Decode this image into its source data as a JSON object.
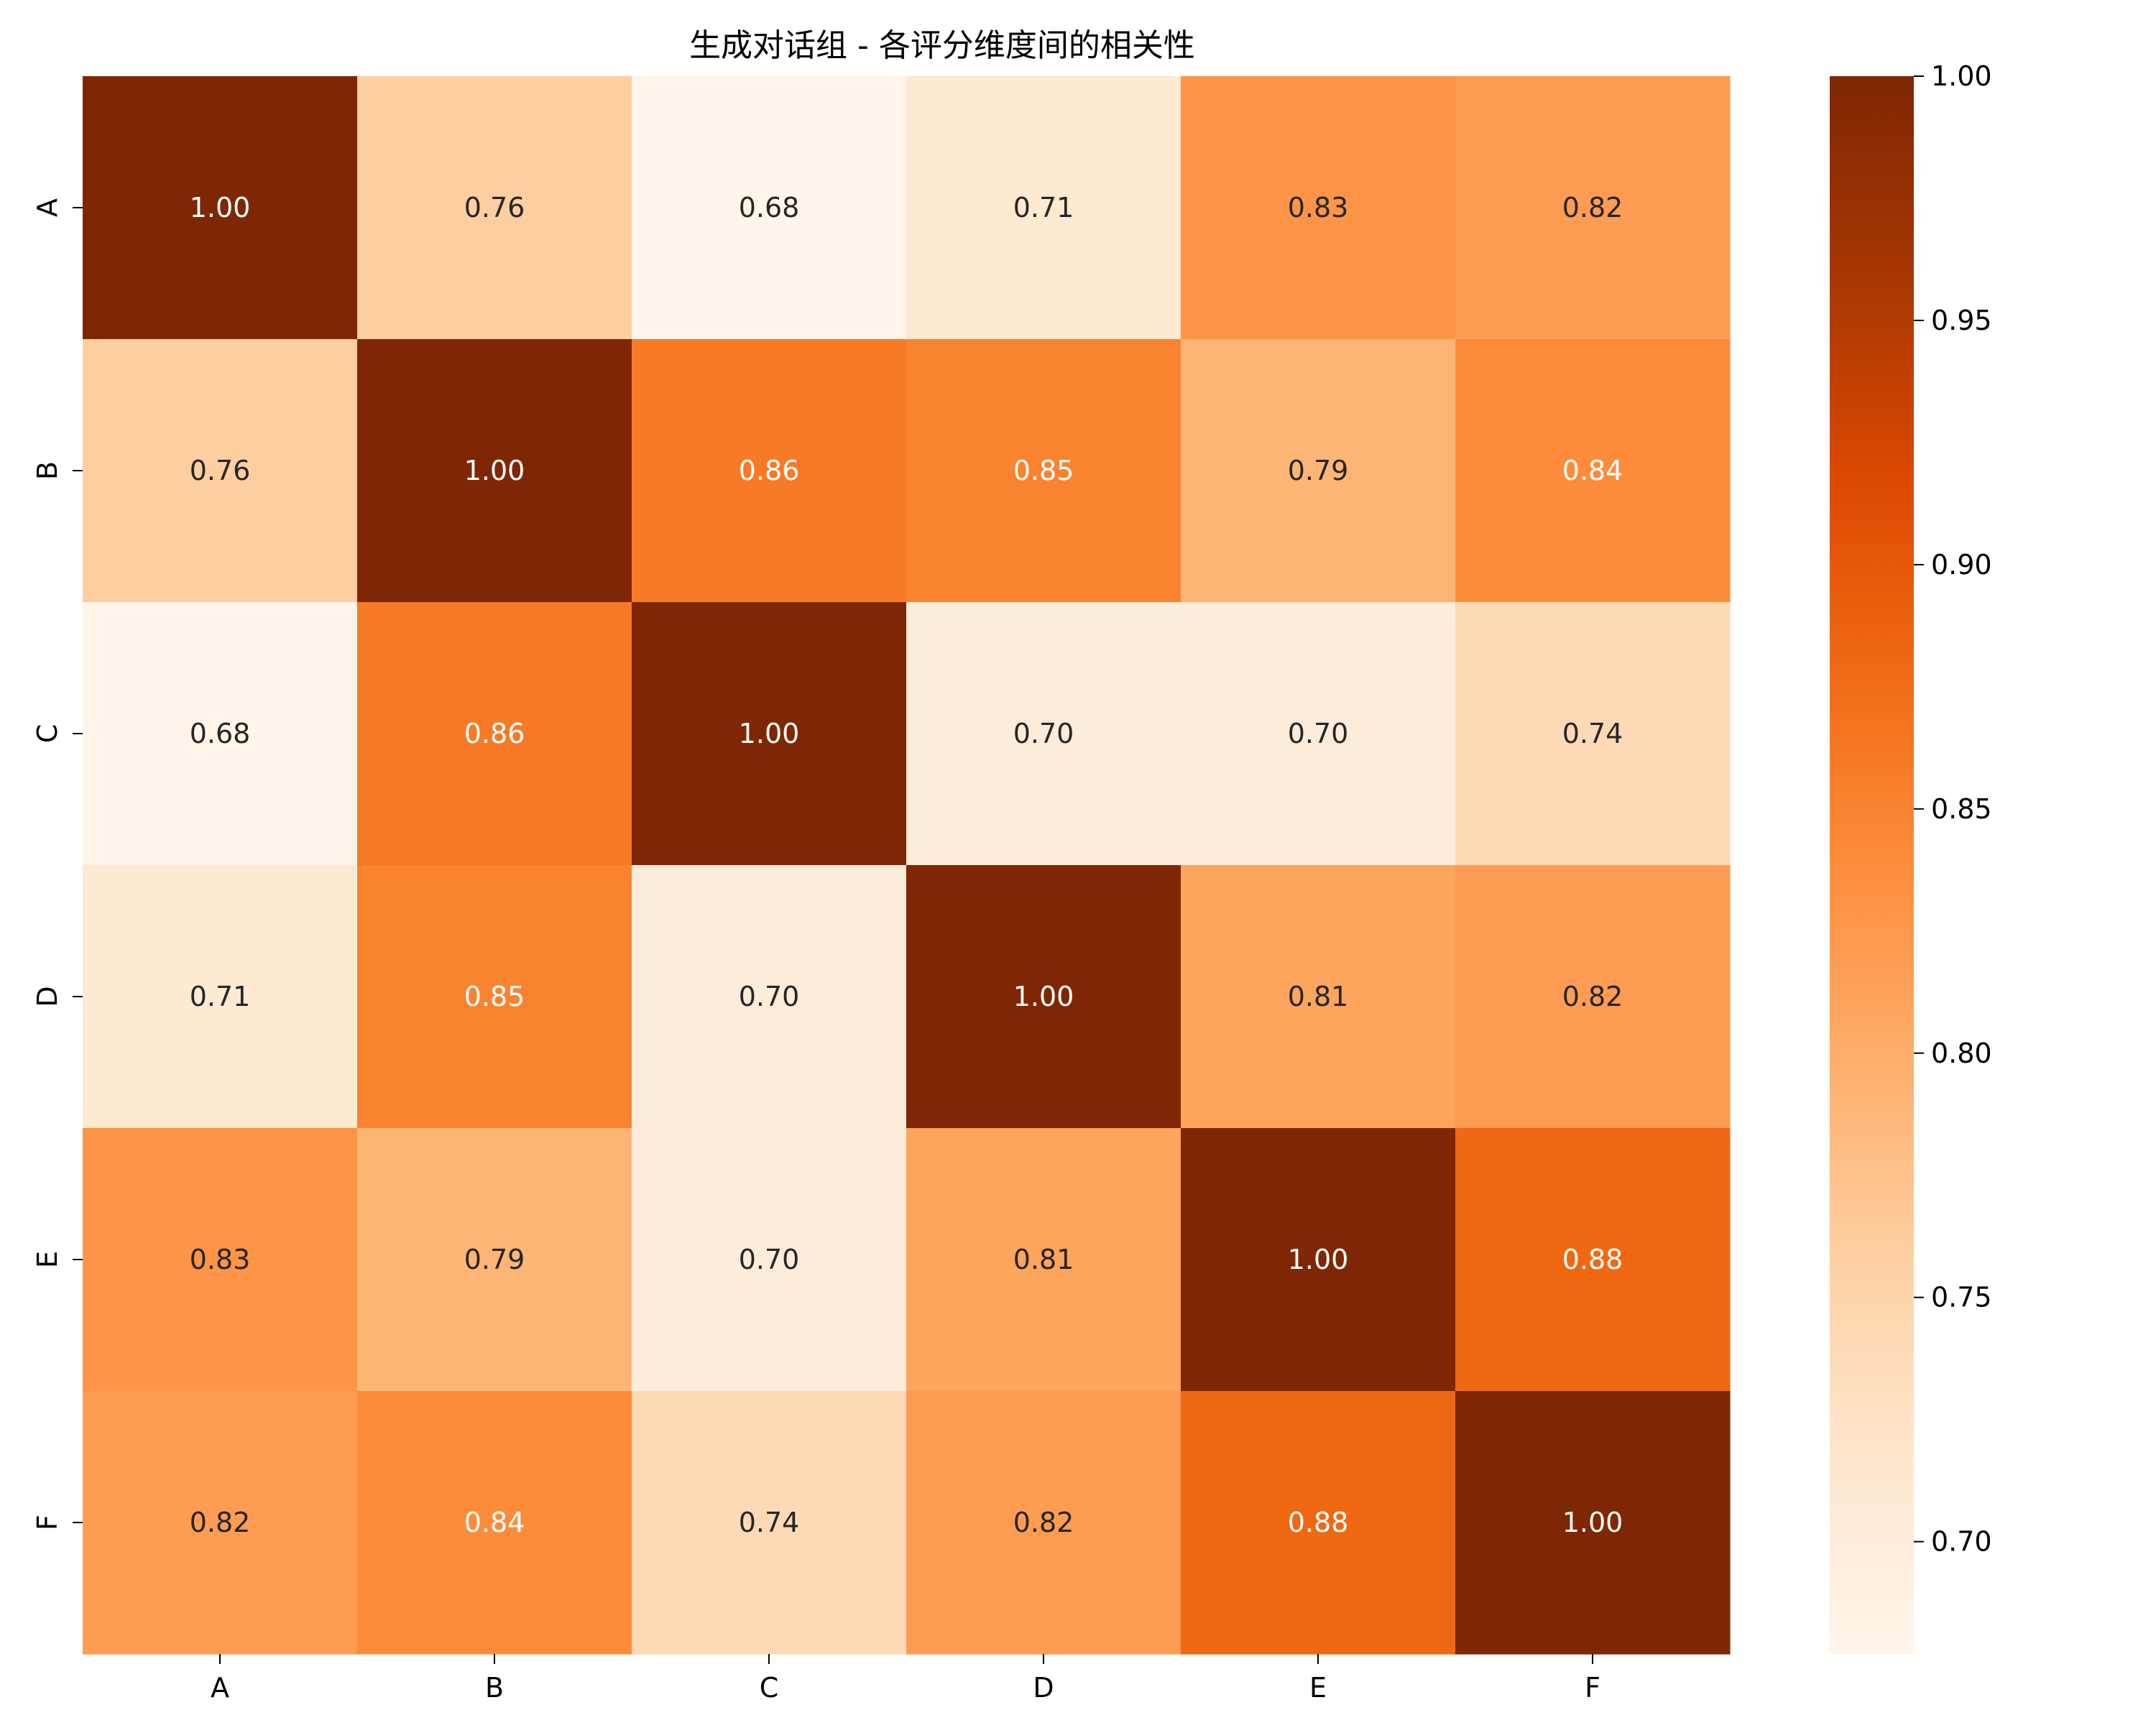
{
  "chart_data": {
    "type": "heatmap",
    "title": "生成对话组 - 各评分维度间的相关性",
    "xlabel": "",
    "ylabel": "",
    "x_categories": [
      "A",
      "B",
      "C",
      "D",
      "E",
      "F"
    ],
    "y_categories": [
      "A",
      "B",
      "C",
      "D",
      "E",
      "F"
    ],
    "values": [
      [
        1.0,
        0.76,
        0.68,
        0.71,
        0.83,
        0.82
      ],
      [
        0.76,
        1.0,
        0.86,
        0.85,
        0.79,
        0.84
      ],
      [
        0.68,
        0.86,
        1.0,
        0.7,
        0.7,
        0.74
      ],
      [
        0.71,
        0.85,
        0.7,
        1.0,
        0.81,
        0.82
      ],
      [
        0.83,
        0.79,
        0.7,
        0.81,
        1.0,
        0.88
      ],
      [
        0.82,
        0.84,
        0.74,
        0.82,
        0.88,
        1.0
      ]
    ],
    "value_format": "2 decimals",
    "colormap": "Oranges",
    "colormap_stops": [
      "#fff5eb",
      "#fee6ce",
      "#fdd0a2",
      "#fdae6b",
      "#fd8d3c",
      "#f16913",
      "#d94801",
      "#a63603",
      "#7f2704"
    ],
    "vmin": 0.677,
    "vmax": 1.0,
    "colorbar_ticks": [
      "0.70",
      "0.75",
      "0.80",
      "0.85",
      "0.90",
      "0.95",
      "1.00"
    ],
    "colorbar_position": "right",
    "grid": false
  }
}
